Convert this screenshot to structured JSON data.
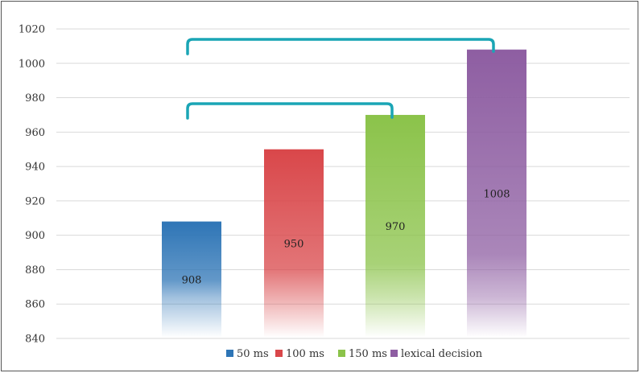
{
  "chart_data": {
    "type": "bar",
    "categories": [
      "50 ms",
      "100 ms",
      "150 ms",
      "lexical decision"
    ],
    "values": [
      908,
      950,
      970,
      1008
    ],
    "data_labels": [
      "908",
      "950",
      "970",
      "1008"
    ],
    "colors": [
      "#2e75b6",
      "#d9474a",
      "#8bc34a",
      "#8e5ea2"
    ],
    "ylim": [
      840,
      1020
    ],
    "yticks": [
      "840",
      "860",
      "880",
      "900",
      "920",
      "940",
      "960",
      "980",
      "1000",
      "1020"
    ],
    "grid": true,
    "legend_position": "bottom",
    "brackets": [
      {
        "from": "50 ms",
        "to": "lexical decision"
      },
      {
        "from": "50 ms",
        "to": "150 ms"
      }
    ],
    "bracket_color": "#1aa5b5"
  }
}
